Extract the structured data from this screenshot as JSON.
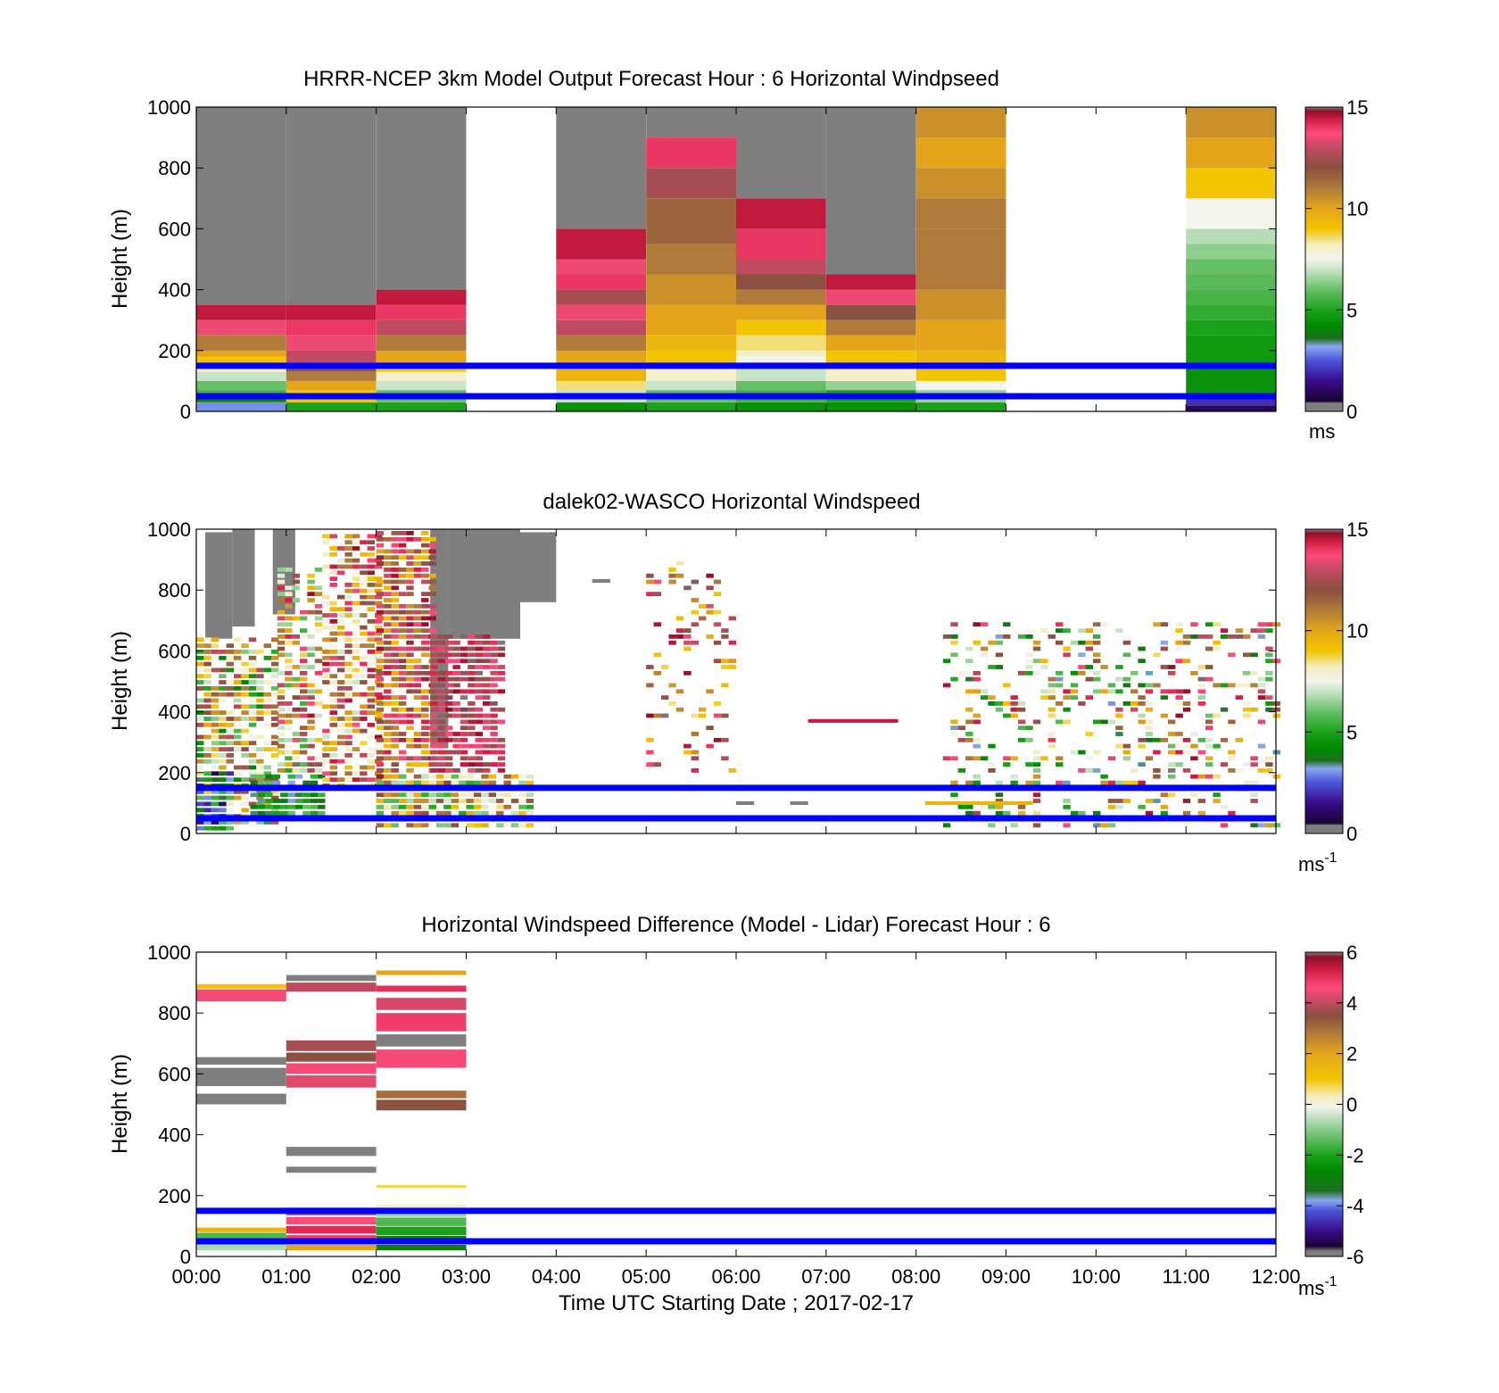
{
  "chart_data": [
    {
      "type": "heatmap",
      "title": "HRRR-NCEP 3km Model Output   Forecast Hour : 6 Horizontal Windpseed",
      "ylabel": "Height (m)",
      "xlim": [
        0,
        12
      ],
      "ylim": [
        0,
        1000
      ],
      "yticks": [
        "0",
        "200",
        "400",
        "600",
        "800",
        "1000"
      ],
      "colorbar": {
        "min": 0,
        "max": 15,
        "ticks": [
          "0",
          "5",
          "10",
          "15"
        ],
        "unit": "ms"
      },
      "reference_lines_m": [
        150,
        50
      ],
      "reference_line_color": "#0000ff",
      "columns": [
        {
          "x0": 0,
          "x1": 1,
          "cells": [
            [
              0,
              30,
              3
            ],
            [
              30,
              50,
              4
            ],
            [
              50,
              70,
              5.5
            ],
            [
              70,
              100,
              6
            ],
            [
              100,
              130,
              7
            ],
            [
              130,
              150,
              8
            ],
            [
              150,
              180,
              9
            ],
            [
              180,
              200,
              10
            ],
            [
              200,
              250,
              11
            ],
            [
              250,
              300,
              13.5
            ],
            [
              300,
              350,
              14.5
            ],
            [
              350,
              1000,
              16
            ]
          ]
        },
        {
          "x0": 1,
          "x1": 2,
          "cells": [
            [
              0,
              30,
              5
            ],
            [
              30,
              70,
              9
            ],
            [
              70,
              100,
              10
            ],
            [
              100,
              130,
              11
            ],
            [
              130,
              160,
              12
            ],
            [
              160,
              200,
              13
            ],
            [
              200,
              250,
              13.5
            ],
            [
              250,
              300,
              14
            ],
            [
              300,
              350,
              14.5
            ],
            [
              350,
              1000,
              16
            ]
          ]
        },
        {
          "x0": 2,
          "x1": 3,
          "cells": [
            [
              0,
              30,
              5
            ],
            [
              30,
              70,
              6
            ],
            [
              70,
              100,
              7
            ],
            [
              100,
              130,
              8
            ],
            [
              130,
              150,
              9
            ],
            [
              150,
              200,
              10
            ],
            [
              200,
              250,
              11
            ],
            [
              250,
              300,
              13
            ],
            [
              300,
              350,
              14
            ],
            [
              350,
              400,
              14.5
            ],
            [
              400,
              1000,
              16
            ]
          ]
        },
        {
          "x0": 4,
          "x1": 5,
          "cells": [
            [
              0,
              30,
              4.5
            ],
            [
              30,
              70,
              7
            ],
            [
              70,
              100,
              8.5
            ],
            [
              100,
              150,
              9.5
            ],
            [
              150,
              200,
              10
            ],
            [
              200,
              250,
              11
            ],
            [
              250,
              300,
              13
            ],
            [
              300,
              350,
              13.5
            ],
            [
              350,
              400,
              12.5
            ],
            [
              400,
              450,
              14
            ],
            [
              450,
              500,
              13.5
            ],
            [
              500,
              600,
              14.5
            ],
            [
              600,
              1000,
              16
            ]
          ]
        },
        {
          "x0": 5,
          "x1": 6,
          "cells": [
            [
              0,
              30,
              5
            ],
            [
              30,
              70,
              6
            ],
            [
              70,
              100,
              7
            ],
            [
              100,
              150,
              8
            ],
            [
              150,
              200,
              9
            ],
            [
              200,
              250,
              9.5
            ],
            [
              250,
              350,
              10
            ],
            [
              350,
              450,
              10.5
            ],
            [
              450,
              550,
              11
            ],
            [
              550,
              700,
              11.5
            ],
            [
              700,
              800,
              12.5
            ],
            [
              800,
              900,
              14
            ],
            [
              900,
              1000,
              16
            ]
          ]
        },
        {
          "x0": 6,
          "x1": 7,
          "cells": [
            [
              0,
              30,
              4.5
            ],
            [
              30,
              70,
              5.5
            ],
            [
              70,
              100,
              6
            ],
            [
              100,
              150,
              7
            ],
            [
              150,
              180,
              7.5
            ],
            [
              180,
              200,
              8
            ],
            [
              200,
              250,
              8.5
            ],
            [
              250,
              300,
              9
            ],
            [
              300,
              350,
              10
            ],
            [
              350,
              400,
              11
            ],
            [
              400,
              450,
              12
            ],
            [
              450,
              500,
              13
            ],
            [
              500,
              600,
              14
            ],
            [
              600,
              700,
              14.5
            ],
            [
              700,
              1000,
              16
            ]
          ]
        },
        {
          "x0": 7,
          "x1": 8,
          "cells": [
            [
              0,
              30,
              4.5
            ],
            [
              30,
              70,
              5
            ],
            [
              70,
              100,
              6.5
            ],
            [
              100,
              150,
              8
            ],
            [
              150,
              200,
              9
            ],
            [
              200,
              250,
              10
            ],
            [
              250,
              300,
              11
            ],
            [
              300,
              350,
              12
            ],
            [
              350,
              400,
              13.5
            ],
            [
              400,
              450,
              14.5
            ],
            [
              450,
              1000,
              16
            ]
          ]
        },
        {
          "x0": 8,
          "x1": 9,
          "cells": [
            [
              0,
              30,
              5
            ],
            [
              30,
              70,
              6.5
            ],
            [
              70,
              100,
              7.5
            ],
            [
              100,
              150,
              9
            ],
            [
              150,
              200,
              9.5
            ],
            [
              200,
              300,
              10
            ],
            [
              300,
              400,
              10.5
            ],
            [
              400,
              600,
              11
            ],
            [
              600,
              700,
              11
            ],
            [
              700,
              800,
              10.5
            ],
            [
              800,
              900,
              10
            ],
            [
              900,
              1000,
              10.5
            ]
          ]
        },
        {
          "x0": 11,
          "x1": 12,
          "cells": [
            [
              0,
              20,
              1
            ],
            [
              20,
              50,
              2
            ],
            [
              50,
              150,
              4.5
            ],
            [
              150,
              250,
              4.7
            ],
            [
              250,
              300,
              5
            ],
            [
              300,
              350,
              5.3
            ],
            [
              350,
              400,
              5.6
            ],
            [
              400,
              450,
              5.8
            ],
            [
              450,
              500,
              6
            ],
            [
              500,
              550,
              6.4
            ],
            [
              550,
              600,
              6.8
            ],
            [
              600,
              700,
              7.5
            ],
            [
              700,
              800,
              9
            ],
            [
              800,
              900,
              10
            ],
            [
              900,
              1000,
              10.5
            ]
          ]
        }
      ]
    },
    {
      "type": "heatmap",
      "title": "dalek02-WASCO  Horizontal Windspeed",
      "ylabel": "Height (m)",
      "xlim": [
        0,
        12
      ],
      "ylim": [
        0,
        1000
      ],
      "yticks": [
        "0",
        "200",
        "400",
        "600",
        "800",
        "1000"
      ],
      "colorbar": {
        "min": 0,
        "max": 15,
        "ticks": [
          "0",
          "5",
          "10",
          "15"
        ],
        "unit": "ms",
        "unit_exp": "-1"
      },
      "reference_lines_m": [
        150,
        50
      ],
      "reference_line_color": "#0000ff",
      "gray_regions": [
        [
          0.1,
          0.4,
          640,
          990
        ],
        [
          0.4,
          0.65,
          680,
          1000
        ],
        [
          0.85,
          1.1,
          720,
          1000
        ],
        [
          2.6,
          2.8,
          280,
          1000
        ],
        [
          2.8,
          3.6,
          640,
          1000
        ],
        [
          3.6,
          4.0,
          760,
          990
        ]
      ],
      "regions": [
        {
          "t0": 0.0,
          "t1": 0.9,
          "h0": 30,
          "h1": 640,
          "vmin": 4,
          "vmax": 13,
          "seed": 11,
          "p": 0.8
        },
        {
          "t0": 0.0,
          "t1": 0.4,
          "h0": 10,
          "h1": 200,
          "vmin": 1,
          "vmax": 6,
          "seed": 12,
          "p": 0.85
        },
        {
          "t0": 0.6,
          "t1": 1.4,
          "h0": 40,
          "h1": 200,
          "vmin": 3,
          "vmax": 6,
          "seed": 13,
          "p": 0.9
        },
        {
          "t0": 0.9,
          "t1": 1.4,
          "h0": 200,
          "h1": 880,
          "vmin": 5,
          "vmax": 15,
          "seed": 14,
          "p": 0.7
        },
        {
          "t0": 1.4,
          "t1": 2.0,
          "h0": 150,
          "h1": 990,
          "vmin": 7,
          "vmax": 15,
          "seed": 15,
          "p": 0.75
        },
        {
          "t0": 2.0,
          "t1": 2.6,
          "h0": 40,
          "h1": 990,
          "vmin": 9,
          "vmax": 15,
          "seed": 16,
          "p": 0.8
        },
        {
          "t0": 2.6,
          "t1": 3.4,
          "h0": 200,
          "h1": 650,
          "vmin": 12,
          "vmax": 15,
          "seed": 17,
          "p": 0.85
        },
        {
          "t0": 2.0,
          "t1": 3.7,
          "h0": 20,
          "h1": 200,
          "vmin": 5,
          "vmax": 12,
          "seed": 18,
          "p": 0.85
        },
        {
          "t0": 5.0,
          "t1": 6.0,
          "h0": 200,
          "h1": 900,
          "vmin": 8,
          "vmax": 15,
          "seed": 19,
          "p": 0.18
        },
        {
          "t0": 8.3,
          "t1": 12.0,
          "h0": 20,
          "h1": 700,
          "vmin": 3,
          "vmax": 15,
          "seed": 20,
          "p": 0.32
        }
      ],
      "streaks": [
        [
          6.8,
          7.8,
          370,
          14.5
        ],
        [
          8.1,
          9.3,
          100,
          9.5
        ],
        [
          6.6,
          6.8,
          100,
          16
        ],
        [
          6.0,
          6.2,
          100,
          16
        ],
        [
          3.6,
          4.0,
          960,
          16
        ],
        [
          4.4,
          4.6,
          830,
          16
        ]
      ]
    },
    {
      "type": "heatmap",
      "title": "Horizontal Windspeed Difference (Model - Lidar) Forecast Hour : 6",
      "ylabel": "Height (m)",
      "xlabel": "Time UTC  Starting Date ; 2017-02-17",
      "xlim": [
        0,
        12
      ],
      "ylim": [
        0,
        1000
      ],
      "xticks": [
        "00:00",
        "01:00",
        "02:00",
        "03:00",
        "04:00",
        "05:00",
        "06:00",
        "07:00",
        "08:00",
        "09:00",
        "10:00",
        "11:00",
        "12:00"
      ],
      "yticks": [
        "0",
        "200",
        "400",
        "600",
        "800",
        "1000"
      ],
      "colorbar": {
        "min": -6,
        "max": 6,
        "ticks": [
          "-6",
          "-4",
          "-2",
          "0",
          "2",
          "4",
          "6"
        ],
        "unit": "ms",
        "unit_exp": "-1"
      },
      "reference_lines_m": [
        150,
        50
      ],
      "reference_line_color": "#0000ff",
      "cells": [
        [
          0,
          1,
          880,
          895,
          1
        ],
        [
          0,
          1,
          838,
          878,
          4.5
        ],
        [
          0,
          1,
          630,
          655,
          7
        ],
        [
          0,
          1,
          560,
          620,
          7
        ],
        [
          0,
          1,
          500,
          535,
          7
        ],
        [
          0,
          1,
          80,
          95,
          1.5
        ],
        [
          0,
          1,
          55,
          78,
          -1.5
        ],
        [
          0,
          1,
          20,
          50,
          -0.7
        ],
        [
          1,
          2,
          905,
          925,
          7
        ],
        [
          1,
          2,
          870,
          900,
          4
        ],
        [
          1,
          2,
          675,
          710,
          3.8
        ],
        [
          1,
          2,
          640,
          670,
          3.5
        ],
        [
          1,
          2,
          600,
          635,
          4.5
        ],
        [
          1,
          2,
          555,
          595,
          4.3
        ],
        [
          1,
          2,
          330,
          360,
          7
        ],
        [
          1,
          2,
          275,
          295,
          7
        ],
        [
          1,
          2,
          135,
          160,
          4
        ],
        [
          1,
          2,
          105,
          130,
          4.6
        ],
        [
          1,
          2,
          75,
          100,
          5.1
        ],
        [
          1,
          2,
          40,
          70,
          4.8
        ],
        [
          1,
          2,
          20,
          38,
          2
        ],
        [
          2,
          3,
          925,
          940,
          2
        ],
        [
          2,
          3,
          870,
          890,
          5
        ],
        [
          2,
          3,
          810,
          850,
          4.2
        ],
        [
          2,
          3,
          740,
          800,
          4.8
        ],
        [
          2,
          3,
          690,
          730,
          7
        ],
        [
          2,
          3,
          620,
          680,
          4.5
        ],
        [
          2,
          3,
          520,
          545,
          3
        ],
        [
          2,
          3,
          480,
          515,
          3.5
        ],
        [
          2,
          3,
          225,
          235,
          0.7
        ],
        [
          2,
          3,
          160,
          170,
          0.3
        ],
        [
          2,
          3,
          130,
          150,
          -0.8
        ],
        [
          2,
          3,
          100,
          128,
          -1.5
        ],
        [
          2,
          3,
          70,
          98,
          -2
        ],
        [
          2,
          3,
          40,
          68,
          -2.6
        ],
        [
          2,
          3,
          20,
          38,
          -3
        ]
      ]
    }
  ]
}
